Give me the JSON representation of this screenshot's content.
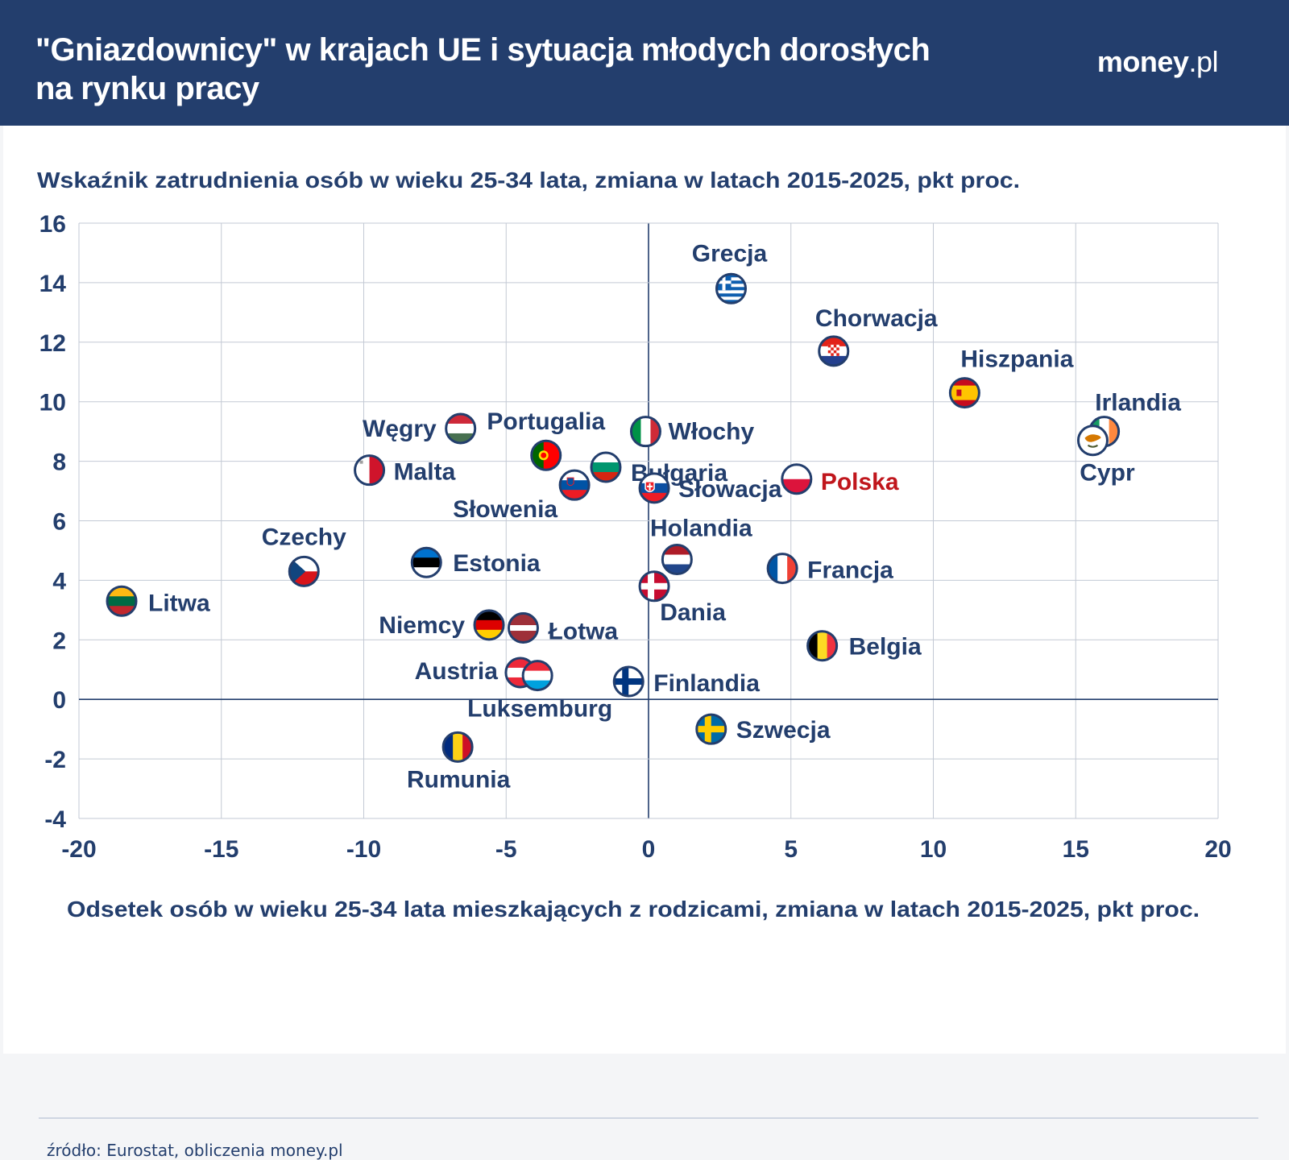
{
  "header": {
    "title_line1": "\"Gniazdownicy\" w krajach UE i sytuacja młodych dorosłych",
    "title_line2": "na rynku pracy",
    "logo_bold": "money",
    "logo_rest": ".pl"
  },
  "source": "źródło: Eurostat, obliczenia money.pl",
  "colors": {
    "navy": "#233e6d",
    "highlight": "#c0161c",
    "grid": "#c3c9d4"
  },
  "chart_data": {
    "type": "scatter",
    "ylabel": "Wskaźnik zatrudnienia osób w wieku 25-34 lata, zmiana w latach 2015-2025, pkt proc.",
    "xlabel": "Odsetek osób w wieku 25-34 lata mieszkających z rodzicami, zmiana w latach 2015-2025, pkt proc.",
    "xlim": [
      -20,
      20
    ],
    "ylim": [
      -4,
      16
    ],
    "xticks": [
      -20,
      -15,
      -10,
      -5,
      0,
      5,
      10,
      15,
      20
    ],
    "yticks": [
      -4,
      -2,
      0,
      2,
      4,
      6,
      8,
      10,
      12,
      14,
      16
    ],
    "grid": true,
    "points": [
      {
        "name": "Grecja",
        "x": 2.9,
        "y": 13.8,
        "flag": "greece-flag-icon"
      },
      {
        "name": "Chorwacja",
        "x": 6.5,
        "y": 11.7,
        "flag": "croatia-flag-icon"
      },
      {
        "name": "Hiszpania",
        "x": 11.1,
        "y": 10.3,
        "flag": "spain-flag-icon"
      },
      {
        "name": "Irlandia",
        "x": 16.0,
        "y": 9.0,
        "flag": "ireland-flag-icon"
      },
      {
        "name": "Cypr",
        "x": 15.6,
        "y": 8.7,
        "flag": "cyprus-flag-icon"
      },
      {
        "name": "Włochy",
        "x": -0.1,
        "y": 9.0,
        "flag": "italy-flag-icon"
      },
      {
        "name": "Węgry",
        "x": -6.6,
        "y": 9.1,
        "flag": "hungary-flag-icon"
      },
      {
        "name": "Portugalia",
        "x": -3.6,
        "y": 8.2,
        "flag": "portugal-flag-icon"
      },
      {
        "name": "Bułgaria",
        "x": -1.5,
        "y": 7.8,
        "flag": "bulgaria-flag-icon"
      },
      {
        "name": "Malta",
        "x": -9.8,
        "y": 7.7,
        "flag": "malta-flag-icon"
      },
      {
        "name": "Słowenia",
        "x": -2.6,
        "y": 7.2,
        "flag": "slovenia-flag-icon"
      },
      {
        "name": "Słowacja",
        "x": 0.2,
        "y": 7.1,
        "flag": "slovakia-flag-icon"
      },
      {
        "name": "Polska",
        "x": 5.2,
        "y": 7.4,
        "flag": "poland-flag-icon",
        "highlight": true
      },
      {
        "name": "Holandia",
        "x": 1.0,
        "y": 4.7,
        "flag": "netherlands-flag-icon"
      },
      {
        "name": "Francja",
        "x": 4.7,
        "y": 4.4,
        "flag": "france-flag-icon"
      },
      {
        "name": "Dania",
        "x": 0.2,
        "y": 3.8,
        "flag": "denmark-flag-icon"
      },
      {
        "name": "Estonia",
        "x": -7.8,
        "y": 4.6,
        "flag": "estonia-flag-icon"
      },
      {
        "name": "Czechy",
        "x": -12.1,
        "y": 4.3,
        "flag": "czechia-flag-icon"
      },
      {
        "name": "Litwa",
        "x": -18.5,
        "y": 3.3,
        "flag": "lithuania-flag-icon"
      },
      {
        "name": "Niemcy",
        "x": -5.6,
        "y": 2.5,
        "flag": "germany-flag-icon"
      },
      {
        "name": "Łotwa",
        "x": -4.4,
        "y": 2.4,
        "flag": "latvia-flag-icon"
      },
      {
        "name": "Belgia",
        "x": 6.1,
        "y": 1.8,
        "flag": "belgium-flag-icon"
      },
      {
        "name": "Austria",
        "x": -4.5,
        "y": 0.9,
        "flag": "austria-flag-icon"
      },
      {
        "name": "Luksemburg",
        "x": -3.9,
        "y": 0.8,
        "flag": "luxembourg-flag-icon"
      },
      {
        "name": "Finlandia",
        "x": -0.7,
        "y": 0.6,
        "flag": "finland-flag-icon"
      },
      {
        "name": "Szwecja",
        "x": 2.2,
        "y": -1.0,
        "flag": "sweden-flag-icon"
      },
      {
        "name": "Rumunia",
        "x": -6.7,
        "y": -1.6,
        "flag": "romania-flag-icon"
      }
    ]
  }
}
